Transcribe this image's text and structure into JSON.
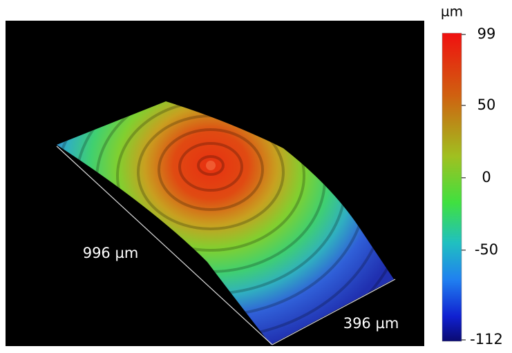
{
  "chart_data": {
    "type": "surface",
    "x_axis_label": "996 µm",
    "y_axis_label": "396 µm",
    "colorbar": {
      "label": "µm",
      "lim": [
        -112,
        99
      ],
      "ticks": [
        99,
        50,
        0,
        -50,
        -112
      ]
    }
  }
}
